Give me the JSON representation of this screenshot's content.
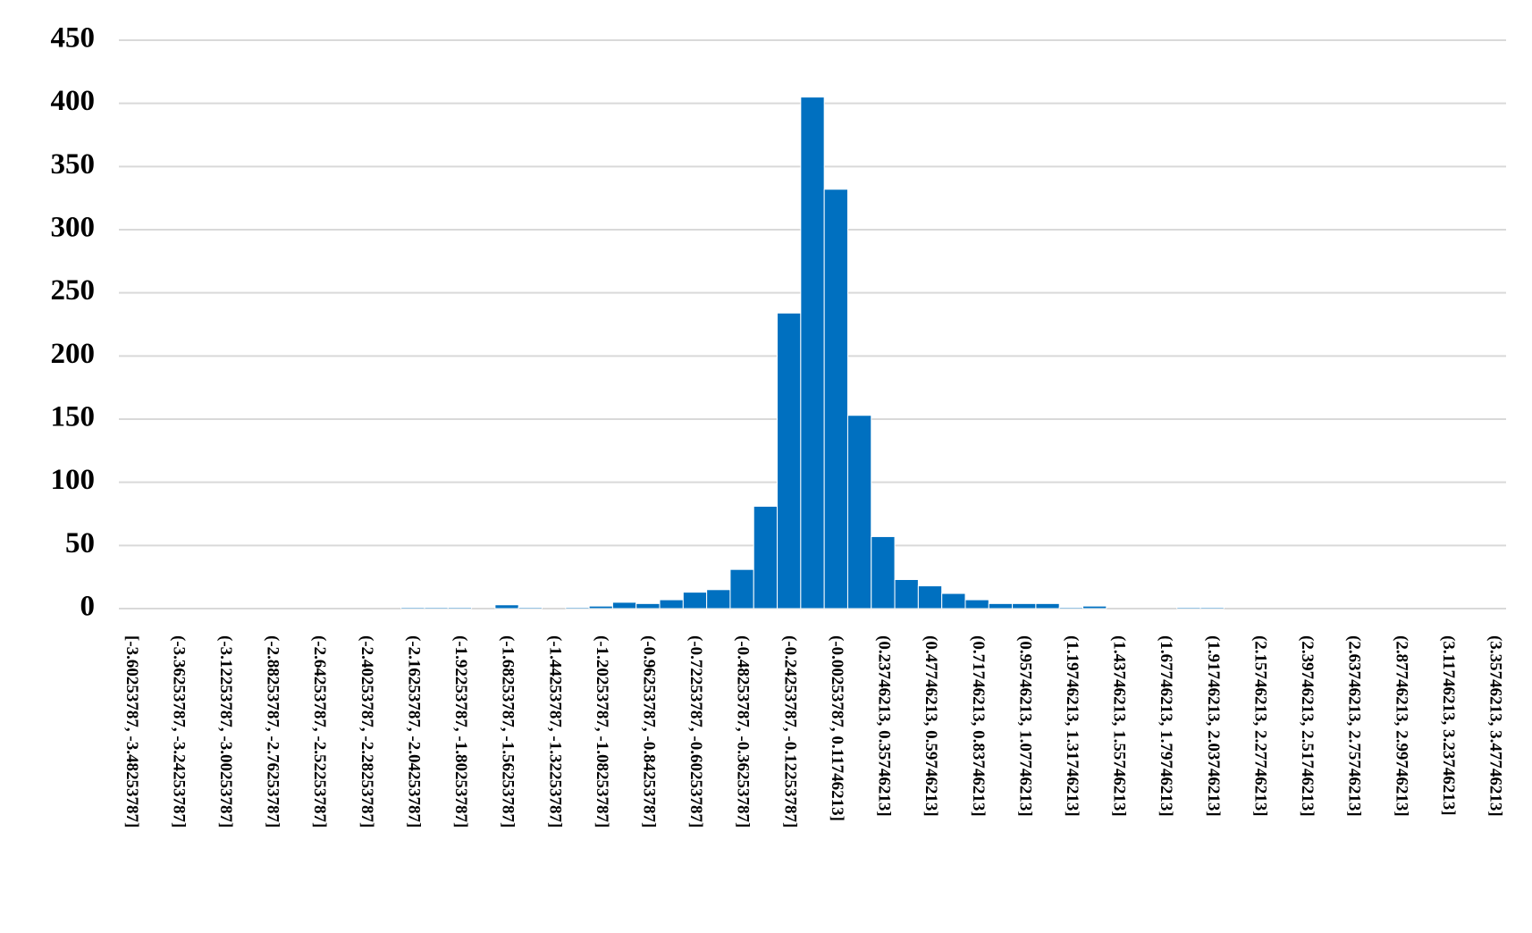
{
  "chart_data": {
    "type": "bar",
    "categories": [
      "[-3.60253787, -3.48253787]",
      null,
      "(-3.36253787, -3.24253787]",
      null,
      "(-3.12253787, -3.00253787]",
      null,
      "(-2.88253787, -2.76253787]",
      null,
      "(-2.64253787, -2.52253787]",
      null,
      "(-2.40253787, -2.28253787]",
      null,
      "(-2.16253787, -2.04253787]",
      null,
      "(-1.92253787, -1.80253787]",
      null,
      "(-1.68253787, -1.56253787]",
      null,
      "(-1.44253787, -1.32253787]",
      null,
      "(-1.20253787, -1.08253787]",
      null,
      "(-0.96253787, -0.84253787]",
      null,
      "(-0.72253787, -0.60253787]",
      null,
      "(-0.48253787, -0.36253787]",
      null,
      "(-0.24253787, -0.12253787]",
      null,
      "(-0.00253787, 0.11746213]",
      null,
      "(0.23746213, 0.35746213]",
      null,
      "(0.47746213, 0.59746213]",
      null,
      "(0.71746213, 0.83746213]",
      null,
      "(0.95746213, 1.07746213]",
      null,
      "(1.19746213, 1.31746213]",
      null,
      "(1.43746213, 1.55746213]",
      null,
      "(1.67746213, 1.79746213]",
      null,
      "(1.91746213, 2.03746213]",
      null,
      "(2.15746213, 2.27746213]",
      null,
      "(2.39746213, 2.51746213]",
      null,
      "(2.63746213, 2.75746213]",
      null,
      "(2.87746213, 2.99746213]",
      null,
      "(3.11746213, 3.23746213]",
      null,
      "(3.35746213, 3.47746213]"
    ],
    "values": [
      0,
      0,
      0,
      0,
      0,
      0,
      0,
      0,
      0,
      0,
      0,
      0,
      1,
      1,
      1,
      0,
      3,
      1,
      0,
      1,
      2,
      5,
      4,
      7,
      13,
      15,
      31,
      81,
      234,
      405,
      332,
      153,
      57,
      23,
      18,
      12,
      7,
      4,
      4,
      4,
      1,
      2,
      0,
      0,
      0,
      1,
      1,
      0,
      0,
      0,
      0,
      0,
      0,
      0,
      0,
      0,
      0,
      0,
      0
    ],
    "color": "#0070c0",
    "ylim": [
      0,
      450
    ],
    "yticks": [
      0,
      50,
      100,
      150,
      200,
      250,
      300,
      350,
      400,
      450
    ],
    "grid": true
  }
}
